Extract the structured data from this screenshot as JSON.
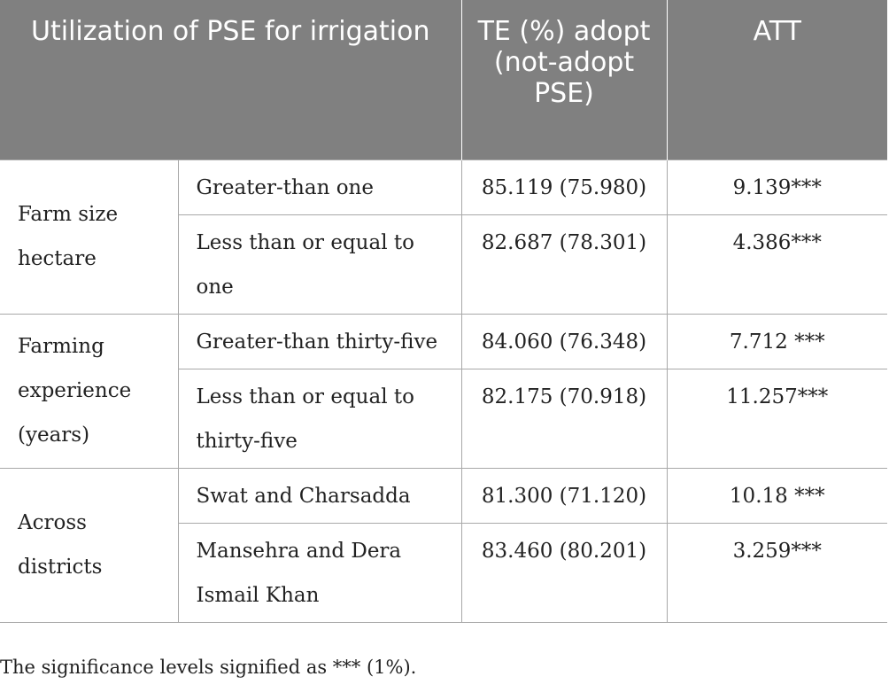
{
  "table": {
    "headers": [
      "Utilization of PSE for irrigation",
      "TE (%) adopt (not-adopt PSE)",
      "ATT"
    ],
    "groups": [
      {
        "label": "Farm size hectare",
        "rows": [
          {
            "category": "Greater-than one",
            "te": "85.119 (75.980)",
            "att": "9.139***"
          },
          {
            "category": "Less than or equal to one",
            "te": "82.687 (78.301)",
            "att": "4.386***"
          }
        ]
      },
      {
        "label": "Farming experience (years)",
        "rows": [
          {
            "category": "Greater-than thirty-five",
            "te": "84.060 (76.348)",
            "att": "7.712 ***"
          },
          {
            "category": "Less than or equal to thirty-five",
            "te": "82.175 (70.918)",
            "att": "11.257***"
          }
        ]
      },
      {
        "label": "Across districts",
        "rows": [
          {
            "category": "Swat and Charsadda",
            "te": "81.300 (71.120)",
            "att": "10.18 ***"
          },
          {
            "category": "Mansehra and Dera Ismail Khan",
            "te": "83.460 (80.201)",
            "att": "3.259***"
          }
        ]
      }
    ]
  },
  "footnote": "The significance levels signified as *** (1%).",
  "colors": {
    "header_bg": "#808080",
    "header_text": "#ffffff",
    "grid": "#a8a8a8",
    "text": "#222222"
  }
}
